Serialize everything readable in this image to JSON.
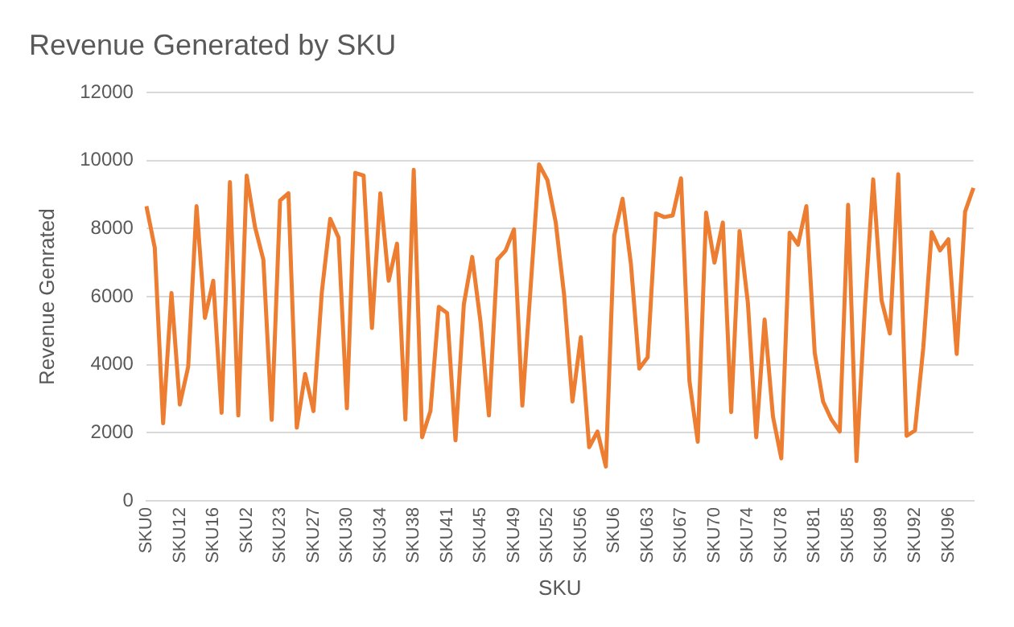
{
  "chart_data": {
    "type": "line",
    "title": "Revenue Generated by SKU",
    "xlabel": "SKU",
    "ylabel": "Revenue Genrated",
    "categories": [
      "SKU0",
      null,
      null,
      null,
      "SKU12",
      null,
      null,
      null,
      "SKU16",
      null,
      null,
      null,
      "SKU2",
      null,
      null,
      null,
      "SKU23",
      null,
      null,
      null,
      "SKU27",
      null,
      null,
      null,
      "SKU30",
      null,
      null,
      null,
      "SKU34",
      null,
      null,
      null,
      "SKU38",
      null,
      null,
      null,
      "SKU41",
      null,
      null,
      null,
      "SKU45",
      null,
      null,
      null,
      "SKU49",
      null,
      null,
      null,
      "SKU52",
      null,
      null,
      null,
      "SKU56",
      null,
      null,
      null,
      "SKU6",
      null,
      null,
      null,
      "SKU63",
      null,
      null,
      null,
      "SKU67",
      null,
      null,
      null,
      "SKU70",
      null,
      null,
      null,
      "SKU74",
      null,
      null,
      null,
      "SKU78",
      null,
      null,
      null,
      "SKU81",
      null,
      null,
      null,
      "SKU85",
      null,
      null,
      null,
      "SKU89",
      null,
      null,
      null,
      "SKU92",
      null,
      null,
      null,
      "SKU96",
      null,
      null,
      null
    ],
    "series": [
      {
        "color": "#ed7d31",
        "values": [
          8660,
          7440,
          2280,
          6110,
          2830,
          3940,
          8660,
          5380,
          6470,
          2590,
          9370,
          2510,
          9560,
          8050,
          7090,
          2380,
          8830,
          9040,
          2150,
          3730,
          2640,
          6140,
          8290,
          7740,
          2720,
          9640,
          9560,
          5080,
          9040,
          6470,
          7560,
          2390,
          9730,
          1870,
          2640,
          5700,
          5520,
          1780,
          5780,
          7170,
          5250,
          2510,
          7090,
          7360,
          7980,
          2800,
          6300,
          9890,
          9430,
          8180,
          6060,
          2920,
          4810,
          1580,
          2040,
          1010,
          7800,
          8880,
          6960,
          3890,
          4220,
          8450,
          8340,
          8390,
          9480,
          3530,
          1740,
          8470,
          7000,
          8180,
          2610,
          7930,
          5820,
          1870,
          5330,
          2480,
          1250,
          7880,
          7530,
          8660,
          4350,
          2920,
          2390,
          2040,
          8700,
          1170,
          5650,
          9450,
          5900,
          4920,
          9600,
          1910,
          2070,
          4510,
          7900,
          7360,
          7690,
          4320,
          8500,
          9200
        ]
      }
    ],
    "ylim": [
      0,
      12000
    ],
    "yticks": [
      0,
      2000,
      4000,
      6000,
      8000,
      10000,
      12000
    ],
    "grid": "y",
    "marker": "none",
    "line_style": "solid"
  }
}
